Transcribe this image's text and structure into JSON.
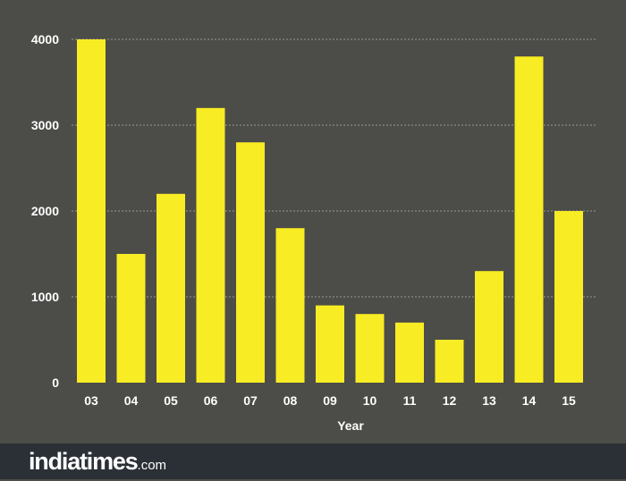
{
  "chart_data": {
    "type": "bar",
    "title": "",
    "xlabel": "Year",
    "ylabel": "",
    "categories": [
      "03",
      "04",
      "05",
      "06",
      "07",
      "08",
      "09",
      "10",
      "11",
      "12",
      "13",
      "14",
      "15"
    ],
    "values": [
      4000,
      1500,
      2200,
      3200,
      2800,
      1800,
      900,
      800,
      700,
      500,
      1300,
      3800,
      2000
    ],
    "ylim": [
      0,
      4000
    ],
    "yticks": [
      "0",
      "1000",
      "2000",
      "3000",
      "4000"
    ],
    "grid": true,
    "bar_color": "#f8ec24",
    "background_color": "#4c4c48"
  },
  "footer": {
    "brand_name": "indiatimes",
    "brand_suffix": ".com",
    "background_color": "#2b3036"
  }
}
